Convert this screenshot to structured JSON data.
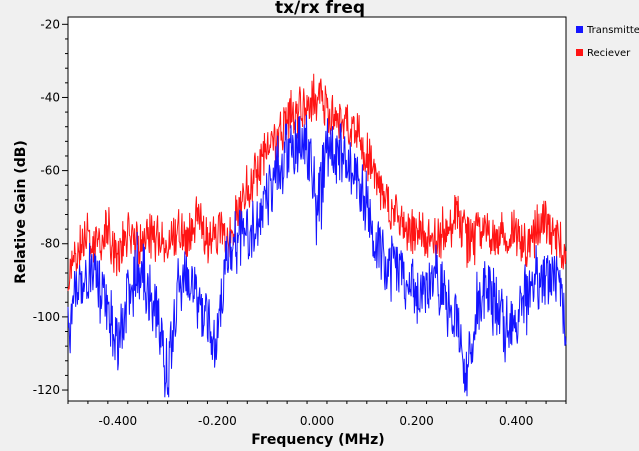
{
  "chart_data": {
    "type": "line",
    "title": "tx/rx freq",
    "xlabel": "Frequency (MHz)",
    "ylabel": "Relative Gain (dB)",
    "xlim": [
      -0.5,
      0.5
    ],
    "ylim": [
      -123,
      -18
    ],
    "x_ticks": [
      -0.4,
      -0.2,
      0.0,
      0.2,
      0.4
    ],
    "x_tick_labels": [
      "-0.400",
      "-0.200",
      "0.000",
      "0.200",
      "0.400"
    ],
    "y_ticks": [
      -20,
      -40,
      -60,
      -80,
      -100,
      -120
    ],
    "y_tick_labels": [
      "-20",
      "-40",
      "-60",
      "-80",
      "-100",
      "-120"
    ],
    "grid": false,
    "legend_position": "top-right",
    "series": [
      {
        "name": "Transmitter",
        "color": "#1414ff",
        "x": [
          -0.5,
          -0.48,
          -0.46,
          -0.44,
          -0.42,
          -0.4,
          -0.38,
          -0.36,
          -0.34,
          -0.32,
          -0.3,
          -0.28,
          -0.26,
          -0.24,
          -0.22,
          -0.2,
          -0.18,
          -0.16,
          -0.14,
          -0.12,
          -0.1,
          -0.08,
          -0.06,
          -0.04,
          -0.02,
          0.0,
          0.02,
          0.04,
          0.06,
          0.08,
          0.1,
          0.12,
          0.14,
          0.16,
          0.18,
          0.2,
          0.22,
          0.24,
          0.26,
          0.28,
          0.3,
          0.32,
          0.34,
          0.36,
          0.38,
          0.4,
          0.42,
          0.44,
          0.46,
          0.48,
          0.5
        ],
        "y": [
          -95,
          -85,
          -80,
          -82,
          -90,
          -100,
          -86,
          -78,
          -84,
          -90,
          -108,
          -85,
          -80,
          -86,
          -95,
          -98,
          -75,
          -72,
          -70,
          -66,
          -58,
          -52,
          -48,
          -45,
          -44,
          -62,
          -45,
          -46,
          -50,
          -55,
          -62,
          -72,
          -80,
          -78,
          -82,
          -84,
          -86,
          -80,
          -88,
          -92,
          -108,
          -88,
          -84,
          -88,
          -96,
          -94,
          -86,
          -82,
          -80,
          -84,
          -95
        ]
      },
      {
        "name": "Reciever",
        "color": "#ff1414",
        "x": [
          -0.5,
          -0.48,
          -0.46,
          -0.44,
          -0.42,
          -0.4,
          -0.38,
          -0.36,
          -0.34,
          -0.32,
          -0.3,
          -0.28,
          -0.26,
          -0.24,
          -0.22,
          -0.2,
          -0.18,
          -0.16,
          -0.14,
          -0.12,
          -0.1,
          -0.08,
          -0.06,
          -0.04,
          -0.02,
          0.0,
          0.02,
          0.04,
          0.06,
          0.08,
          0.1,
          0.12,
          0.14,
          0.16,
          0.18,
          0.2,
          0.22,
          0.24,
          0.26,
          0.28,
          0.3,
          0.32,
          0.34,
          0.36,
          0.38,
          0.4,
          0.42,
          0.44,
          0.46,
          0.48,
          0.5
        ],
        "y": [
          -85,
          -76,
          -72,
          -74,
          -70,
          -78,
          -72,
          -74,
          -70,
          -72,
          -76,
          -70,
          -72,
          -66,
          -74,
          -70,
          -72,
          -66,
          -60,
          -54,
          -48,
          -44,
          -40,
          -38,
          -36,
          -34,
          -36,
          -38,
          -40,
          -44,
          -50,
          -56,
          -64,
          -66,
          -70,
          -70,
          -72,
          -74,
          -70,
          -66,
          -74,
          -72,
          -70,
          -74,
          -72,
          -70,
          -74,
          -70,
          -68,
          -72,
          -80
        ]
      }
    ]
  }
}
